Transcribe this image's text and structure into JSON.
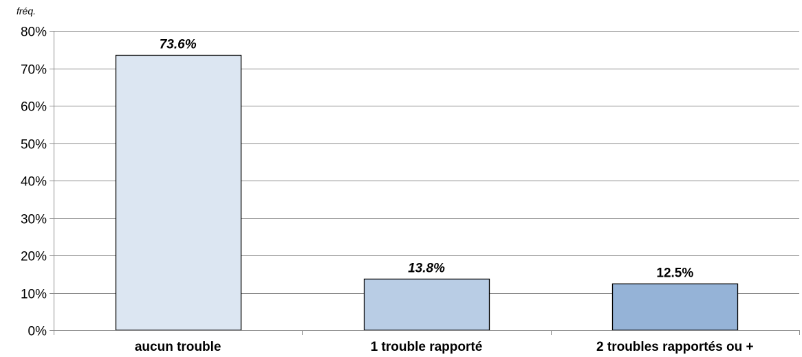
{
  "chart_data": {
    "type": "bar",
    "unit_label": "fréq.",
    "categories": [
      "aucun trouble",
      "1 trouble rapporté",
      "2 troubles rapportés ou +"
    ],
    "values": [
      73.6,
      13.8,
      12.5
    ],
    "data_labels": [
      "73.6%",
      "13.8%",
      "12.5%"
    ],
    "data_label_italic": [
      true,
      true,
      false
    ],
    "ylim": [
      0,
      80
    ],
    "yticks": [
      0,
      10,
      20,
      30,
      40,
      50,
      60,
      70,
      80
    ],
    "ytick_labels": [
      "0%",
      "10%",
      "20%",
      "30%",
      "40%",
      "50%",
      "60%",
      "70%",
      "80%"
    ],
    "grid": true,
    "bar_colors": [
      "#dce6f2",
      "#b9cde5",
      "#95b3d7"
    ],
    "bar_outline": "#000000",
    "grid_color": "#8c8c8c"
  }
}
